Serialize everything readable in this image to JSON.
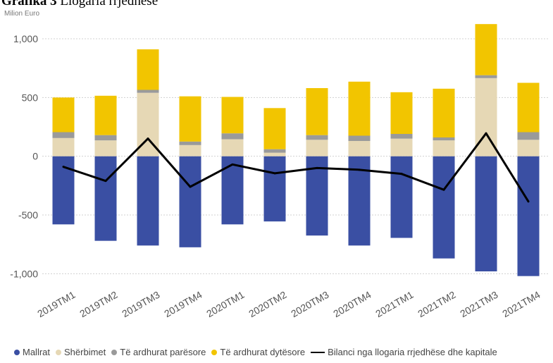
{
  "header": {
    "title_prefix": "Grafika 3",
    "title_text": "Llogaria rrjedhëse",
    "unit": "Milion Euro"
  },
  "chart_data": {
    "type": "bar",
    "stacked": true,
    "categories": [
      "2019TM1",
      "2019TM2",
      "2019TM3",
      "2019TM4",
      "2020TM1",
      "2020TM2",
      "2020TM3",
      "2020TM4",
      "2021TM1",
      "2021TM2",
      "2021TM3",
      "2021TM4"
    ],
    "ylim": [
      -1100,
      1150
    ],
    "yticks": [
      1000,
      500,
      0,
      -500,
      -1000
    ],
    "ytick_labels": [
      "1,000",
      "500",
      "0",
      "-500",
      "-1,000"
    ],
    "grid": true,
    "legend_position": "bottom",
    "series": [
      {
        "name": "Mallrat",
        "color": "#3a4fa3",
        "kind": "bar",
        "values": [
          -580,
          -720,
          -760,
          -775,
          -580,
          -555,
          -675,
          -760,
          -695,
          -870,
          -980,
          -1020
        ]
      },
      {
        "name": "Shërbimet",
        "color": "#e6d8b5",
        "kind": "bar",
        "values": [
          155,
          135,
          540,
          95,
          145,
          30,
          140,
          130,
          150,
          135,
          665,
          140
        ]
      },
      {
        "name": "Të ardhurat parësore",
        "color": "#9a9a9a",
        "kind": "bar",
        "values": [
          50,
          45,
          25,
          30,
          50,
          30,
          40,
          45,
          40,
          25,
          25,
          65
        ]
      },
      {
        "name": "Të ardhurat dytësore",
        "color": "#f2c500",
        "kind": "bar",
        "values": [
          295,
          335,
          345,
          385,
          310,
          350,
          400,
          460,
          355,
          415,
          435,
          420
        ]
      },
      {
        "name": "Bilanci nga llogaria rrjedhëse dhe kapitale",
        "color": "#000000",
        "kind": "line",
        "values": [
          -90,
          -210,
          150,
          -260,
          -70,
          -145,
          -100,
          -115,
          -150,
          -285,
          195,
          -385
        ]
      }
    ]
  }
}
